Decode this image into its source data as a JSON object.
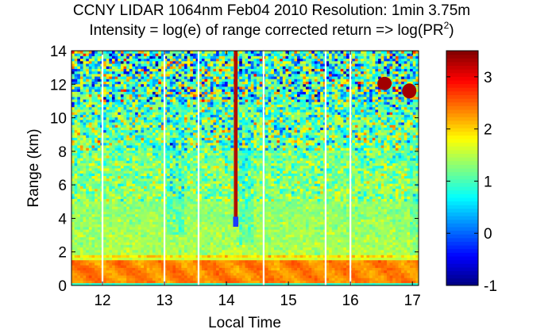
{
  "chart_data": {
    "type": "heatmap",
    "title": "CCNY LIDAR 1064nm Feb04 2010 Resolution: 1min 3.75m",
    "subtitle_prefix": "Intensity = log(e) of range corrected return => log(PR",
    "subtitle_superscript": "2",
    "subtitle_suffix": ")",
    "xlabel": "Local Time",
    "ylabel": "Range (km)",
    "xlim": [
      11.5,
      17.1
    ],
    "ylim": [
      0,
      14
    ],
    "x_ticks": [
      12,
      13,
      14,
      15,
      16,
      17
    ],
    "x_tick_labels": [
      "12",
      "13",
      "14",
      "15",
      "16",
      "17"
    ],
    "y_ticks": [
      0,
      2,
      4,
      6,
      8,
      10,
      12,
      14
    ],
    "y_tick_labels": [
      "0",
      "2",
      "4",
      "6",
      "8",
      "10",
      "12",
      "14"
    ],
    "colormap": "jet",
    "clim": [
      -1,
      3.5
    ],
    "colorbar_ticks": [
      -1,
      0,
      1,
      2,
      3
    ],
    "colorbar_tick_labels": [
      "-1",
      "0",
      "1",
      "2",
      "3"
    ],
    "data_gaps_local_time": [
      12.0,
      13.0,
      13.55,
      14.6,
      15.6,
      16.0
    ],
    "features": {
      "boundary_layer_top_km": 1.5,
      "aerosol_layer_km": [
        1.6,
        1.9
      ],
      "cloud_column": {
        "time_range": [
          14.12,
          14.18
        ],
        "range_km": [
          3.5,
          14
        ]
      },
      "cloud_patches": [
        {
          "time": 16.55,
          "range_km": [
            11.7,
            12.4
          ]
        },
        {
          "time": 16.95,
          "range_km": [
            11.2,
            12.0
          ]
        }
      ]
    }
  }
}
